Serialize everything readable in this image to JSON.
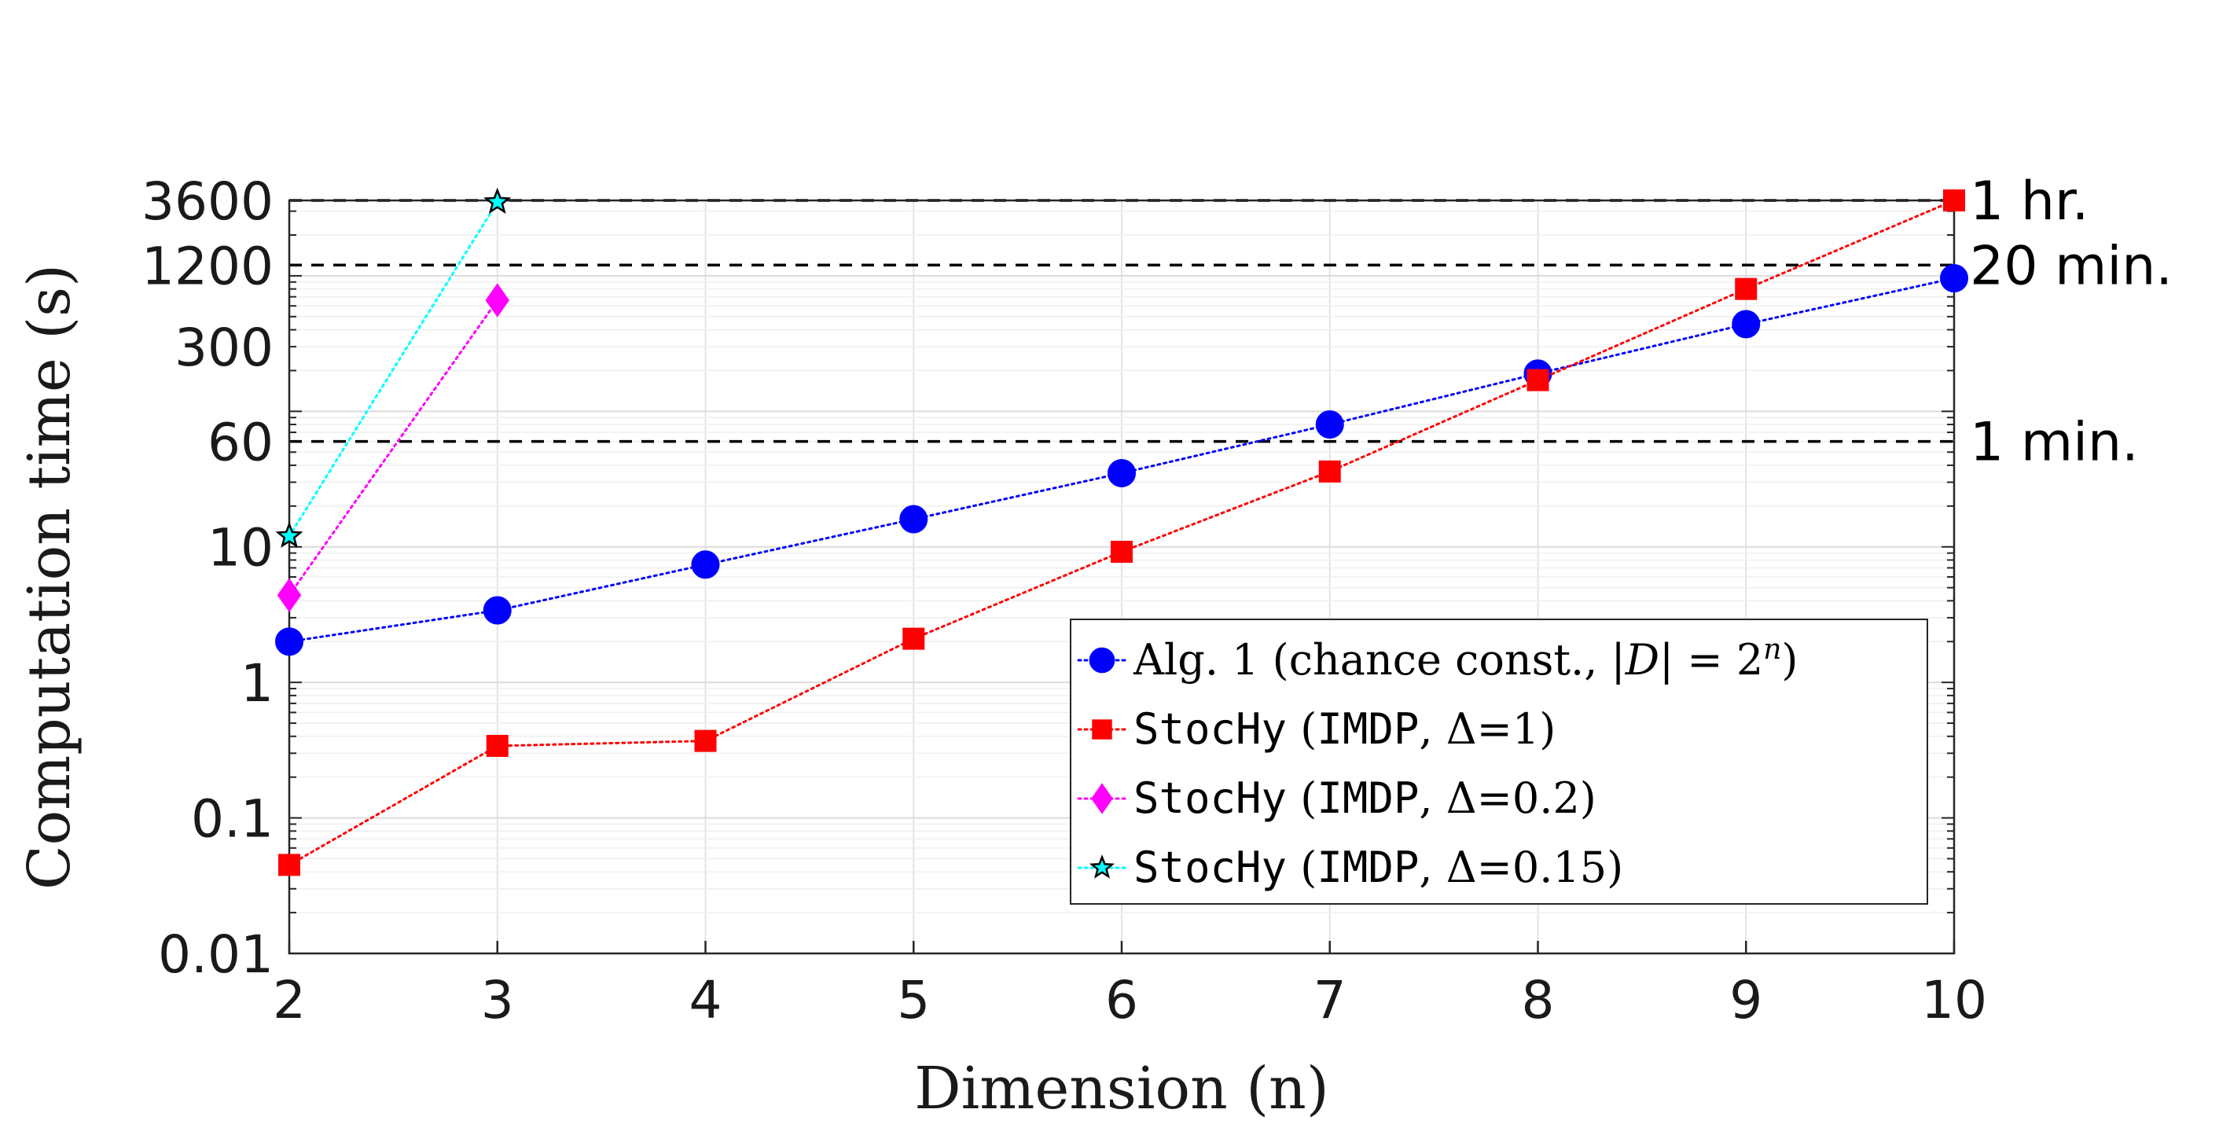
{
  "chart_data": {
    "type": "line",
    "title": "",
    "xlabel": "Dimension (n)",
    "ylabel": "Computation time (s)",
    "xlim": [
      2,
      10
    ],
    "ylim": [
      0.01,
      3600
    ],
    "yscale": "log",
    "grid": true,
    "legend_position": "bottom-right",
    "x_ticks": [
      2,
      3,
      4,
      5,
      6,
      7,
      8,
      9,
      10
    ],
    "y_ticks": [
      {
        "value": 0.01,
        "label": "0.01"
      },
      {
        "value": 0.1,
        "label": "0.1"
      },
      {
        "value": 1,
        "label": "1"
      },
      {
        "value": 10,
        "label": "10"
      },
      {
        "value": 60,
        "label": "60"
      },
      {
        "value": 300,
        "label": "300"
      },
      {
        "value": 1200,
        "label": "1200"
      },
      {
        "value": 3600,
        "label": "3600"
      }
    ],
    "reference_lines": [
      {
        "value": 60,
        "label": "1 min."
      },
      {
        "value": 1200,
        "label": "20 min."
      },
      {
        "value": 3600,
        "label": "1 hr."
      }
    ],
    "series": [
      {
        "name_parts": [
          {
            "text": "Alg. 1 (chance const., |",
            "style": "serif"
          },
          {
            "text": "D",
            "style": "script"
          },
          {
            "text": "| = 2",
            "style": "serif"
          },
          {
            "text": "n",
            "style": "sup"
          },
          {
            "text": ")",
            "style": "serif"
          }
        ],
        "marker": "circle",
        "color": "#0000ff",
        "x": [
          2,
          3,
          4,
          5,
          6,
          7,
          8,
          9,
          10
        ],
        "y": [
          2,
          3.4,
          7.4,
          16,
          35,
          80,
          190,
          440,
          960
        ]
      },
      {
        "name_parts": [
          {
            "text": "StocHy",
            "style": "mono"
          },
          {
            "text": " (",
            "style": "serif"
          },
          {
            "text": "IMDP",
            "style": "mono"
          },
          {
            "text": ", Δ=1)",
            "style": "serif"
          }
        ],
        "marker": "square",
        "color": "#ff0000",
        "x": [
          2,
          3,
          4,
          5,
          6,
          7,
          8,
          9,
          10
        ],
        "y": [
          0.045,
          0.34,
          0.37,
          2.1,
          9.2,
          36,
          170,
          800,
          3600
        ]
      },
      {
        "name_parts": [
          {
            "text": "StocHy",
            "style": "mono"
          },
          {
            "text": " (",
            "style": "serif"
          },
          {
            "text": "IMDP",
            "style": "mono"
          },
          {
            "text": ", Δ=0.2)",
            "style": "serif"
          }
        ],
        "marker": "diamond",
        "color": "#ff00ff",
        "x": [
          2,
          3
        ],
        "y": [
          4.4,
          660
        ]
      },
      {
        "name_parts": [
          {
            "text": "StocHy",
            "style": "mono"
          },
          {
            "text": " (",
            "style": "serif"
          },
          {
            "text": "IMDP",
            "style": "mono"
          },
          {
            "text": ", Δ=0.15)",
            "style": "serif"
          }
        ],
        "marker": "star",
        "color": "#00ffff",
        "x": [
          2,
          3
        ],
        "y": [
          12,
          3500
        ]
      }
    ]
  }
}
